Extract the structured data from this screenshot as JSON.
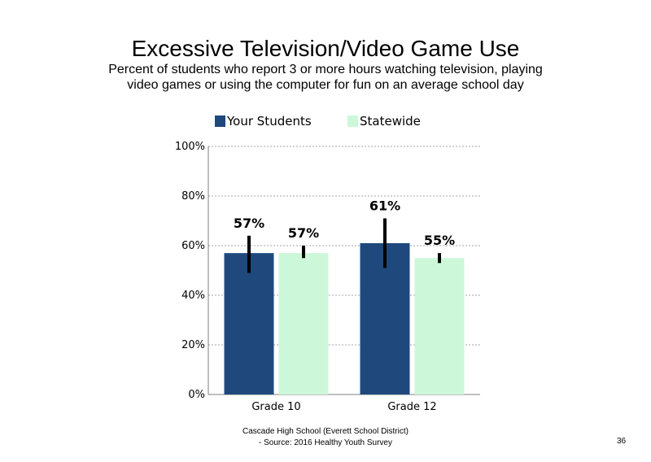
{
  "page_number": "36",
  "footer": {
    "line1": "Cascade High School (Everett School District)",
    "line2": "- Source: 2016 Healthy Youth Survey"
  },
  "colors": {
    "your_students": "#1f497d",
    "statewide": "#ccf8d9",
    "error_bar": "#000000",
    "grid": "#a6a6a6"
  },
  "chart_data": {
    "type": "bar",
    "title": "Excessive Television/Video Game Use",
    "subtitle": "Percent of students who report 3 or more hours watching television, playing video games or using the computer for fun on an average school day",
    "xlabel": "",
    "ylabel": "",
    "categories": [
      "Grade 10",
      "Grade 12"
    ],
    "ylim": [
      0,
      100
    ],
    "yticks": [
      0,
      20,
      40,
      60,
      80,
      100
    ],
    "ytick_labels": [
      "0%",
      "20%",
      "40%",
      "60%",
      "80%",
      "100%"
    ],
    "grid": "horizontal dotted",
    "legend_position": "top",
    "series": [
      {
        "name": "Your Students",
        "values": [
          57,
          61
        ],
        "labels": [
          "57%",
          "61%"
        ],
        "error_low": [
          49,
          51
        ],
        "error_high": [
          64,
          71
        ]
      },
      {
        "name": "Statewide",
        "values": [
          57,
          55
        ],
        "labels": [
          "57%",
          "55%"
        ],
        "error_low": [
          55,
          53
        ],
        "error_high": [
          60,
          57
        ]
      }
    ]
  }
}
